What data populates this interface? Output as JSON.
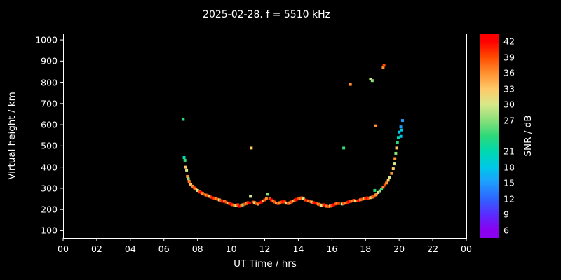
{
  "title": "2025-02-28. f = 5510 kHz",
  "axes": {
    "x": {
      "label": "UT Time / hrs",
      "tick_values": [
        0,
        2,
        4,
        6,
        8,
        10,
        12,
        14,
        16,
        18,
        20,
        22,
        24
      ],
      "tick_labels": [
        "00",
        "02",
        "04",
        "06",
        "08",
        "10",
        "12",
        "14",
        "16",
        "18",
        "20",
        "22",
        "00"
      ]
    },
    "y": {
      "label": "Virtual height / km",
      "tick_values": [
        100,
        200,
        300,
        400,
        500,
        600,
        700,
        800,
        900,
        1000
      ],
      "tick_labels": [
        "100",
        "200",
        "300",
        "400",
        "500",
        "600",
        "700",
        "800",
        "900",
        "1000"
      ]
    }
  },
  "colorbar": {
    "label": "SNR / dB",
    "tick_values": [
      42,
      39,
      36,
      33,
      30,
      27,
      21,
      18,
      15,
      12,
      9,
      6
    ],
    "stops": [
      {
        "value": 6,
        "color": "#8a00f0"
      },
      {
        "value": 9,
        "color": "#5a2bff"
      },
      {
        "value": 12,
        "color": "#2e64ff"
      },
      {
        "value": 15,
        "color": "#1e9bff"
      },
      {
        "value": 18,
        "color": "#00c8e8"
      },
      {
        "value": 21,
        "color": "#00d8b0"
      },
      {
        "value": 24,
        "color": "#2ed878"
      },
      {
        "value": 27,
        "color": "#8ae07a"
      },
      {
        "value": 30,
        "color": "#d8e88a"
      },
      {
        "value": 33,
        "color": "#ffc868"
      },
      {
        "value": 36,
        "color": "#ff9030"
      },
      {
        "value": 39,
        "color": "#ff4a00"
      },
      {
        "value": 42,
        "color": "#ff0000"
      }
    ]
  },
  "colors": {
    "background": "#000000",
    "axis": "#ffffff",
    "text": "#ffffff"
  },
  "chart_data": {
    "type": "scatter",
    "title": "2025-02-28. f = 5510 kHz",
    "xlabel": "UT Time / hrs",
    "ylabel": "Virtual height / km",
    "xlim": [
      0,
      24
    ],
    "ylim": [
      100,
      1000
    ],
    "snr_range": [
      6,
      42
    ],
    "points_format": [
      "ut_hours",
      "virtual_height_km",
      "snr_db"
    ],
    "points": [
      [
        7.15,
        625,
        24
      ],
      [
        7.2,
        445,
        21
      ],
      [
        7.25,
        432,
        24
      ],
      [
        7.3,
        400,
        33
      ],
      [
        7.35,
        386,
        30
      ],
      [
        7.4,
        356,
        36
      ],
      [
        7.45,
        345,
        27
      ],
      [
        7.5,
        333,
        36
      ],
      [
        7.55,
        325,
        39
      ],
      [
        7.6,
        318,
        33
      ],
      [
        7.7,
        310,
        36
      ],
      [
        7.8,
        302,
        39
      ],
      [
        7.9,
        296,
        36
      ],
      [
        8.0,
        290,
        30
      ],
      [
        8.1,
        285,
        39
      ],
      [
        8.2,
        280,
        42
      ],
      [
        8.3,
        276,
        36
      ],
      [
        8.4,
        272,
        39
      ],
      [
        8.5,
        268,
        36
      ],
      [
        8.6,
        265,
        39
      ],
      [
        8.7,
        262,
        33
      ],
      [
        8.8,
        258,
        39
      ],
      [
        8.9,
        255,
        42
      ],
      [
        9.0,
        252,
        39
      ],
      [
        9.1,
        250,
        36
      ],
      [
        9.2,
        248,
        39
      ],
      [
        9.3,
        245,
        30
      ],
      [
        9.4,
        242,
        39
      ],
      [
        9.5,
        238,
        42
      ],
      [
        9.6,
        240,
        36
      ],
      [
        9.7,
        235,
        39
      ],
      [
        9.8,
        230,
        33
      ],
      [
        9.9,
        228,
        39
      ],
      [
        10.0,
        225,
        42
      ],
      [
        10.1,
        222,
        39
      ],
      [
        10.2,
        220,
        36
      ],
      [
        10.3,
        218,
        30
      ],
      [
        10.4,
        222,
        39
      ],
      [
        10.5,
        215,
        42
      ],
      [
        10.6,
        218,
        39
      ],
      [
        10.7,
        222,
        27
      ],
      [
        10.8,
        225,
        39
      ],
      [
        10.9,
        228,
        36
      ],
      [
        11.0,
        232,
        39
      ],
      [
        11.1,
        230,
        42
      ],
      [
        11.15,
        262,
        30
      ],
      [
        11.3,
        235,
        39
      ],
      [
        11.4,
        232,
        30
      ],
      [
        11.5,
        228,
        39
      ],
      [
        11.6,
        225,
        36
      ],
      [
        11.7,
        230,
        39
      ],
      [
        11.8,
        235,
        42
      ],
      [
        11.9,
        240,
        33
      ],
      [
        12.0,
        245,
        39
      ],
      [
        12.1,
        250,
        36
      ],
      [
        12.15,
        272,
        27
      ],
      [
        12.3,
        252,
        39
      ],
      [
        12.4,
        245,
        42
      ],
      [
        12.5,
        240,
        36
      ],
      [
        12.6,
        235,
        39
      ],
      [
        12.7,
        230,
        33
      ],
      [
        12.8,
        228,
        39
      ],
      [
        12.9,
        232,
        36
      ],
      [
        13.0,
        235,
        39
      ],
      [
        13.1,
        238,
        42
      ],
      [
        13.2,
        235,
        39
      ],
      [
        13.3,
        230,
        30
      ],
      [
        13.4,
        228,
        39
      ],
      [
        13.5,
        232,
        36
      ],
      [
        13.6,
        236,
        39
      ],
      [
        13.7,
        240,
        33
      ],
      [
        13.8,
        244,
        39
      ],
      [
        13.9,
        248,
        42
      ],
      [
        14.0,
        250,
        39
      ],
      [
        14.1,
        252,
        36
      ],
      [
        14.2,
        255,
        39
      ],
      [
        14.3,
        250,
        30
      ],
      [
        14.4,
        245,
        39
      ],
      [
        14.5,
        242,
        42
      ],
      [
        14.6,
        240,
        36
      ],
      [
        14.7,
        238,
        39
      ],
      [
        14.8,
        235,
        33
      ],
      [
        14.9,
        232,
        39
      ],
      [
        15.0,
        230,
        42
      ],
      [
        15.1,
        228,
        39
      ],
      [
        15.2,
        225,
        36
      ],
      [
        15.3,
        222,
        39
      ],
      [
        15.4,
        220,
        30
      ],
      [
        15.5,
        222,
        39
      ],
      [
        15.6,
        218,
        42
      ],
      [
        15.7,
        215,
        36
      ],
      [
        15.8,
        214,
        39
      ],
      [
        15.9,
        216,
        33
      ],
      [
        16.0,
        218,
        39
      ],
      [
        16.1,
        222,
        42
      ],
      [
        16.2,
        226,
        39
      ],
      [
        16.3,
        230,
        36
      ],
      [
        16.4,
        228,
        39
      ],
      [
        16.6,
        226,
        30
      ],
      [
        16.7,
        228,
        39
      ],
      [
        16.8,
        230,
        36
      ],
      [
        16.9,
        233,
        39
      ],
      [
        17.0,
        236,
        42
      ],
      [
        17.1,
        238,
        39
      ],
      [
        17.2,
        240,
        36
      ],
      [
        17.3,
        243,
        39
      ],
      [
        17.4,
        240,
        30
      ],
      [
        17.5,
        240,
        39
      ],
      [
        17.6,
        243,
        42
      ],
      [
        17.7,
        246,
        36
      ],
      [
        17.8,
        248,
        39
      ],
      [
        17.9,
        250,
        33
      ],
      [
        18.0,
        252,
        39
      ],
      [
        18.1,
        255,
        42
      ],
      [
        18.2,
        252,
        39
      ],
      [
        18.3,
        256,
        30
      ],
      [
        18.4,
        258,
        36
      ],
      [
        18.5,
        262,
        39
      ],
      [
        18.55,
        290,
        24
      ],
      [
        18.6,
        268,
        36
      ],
      [
        18.65,
        272,
        36
      ],
      [
        18.75,
        280,
        30
      ],
      [
        18.85,
        288,
        27
      ],
      [
        18.95,
        296,
        24
      ],
      [
        19.05,
        305,
        36
      ],
      [
        19.15,
        315,
        39
      ],
      [
        19.25,
        325,
        36
      ],
      [
        19.35,
        338,
        33
      ],
      [
        19.45,
        352,
        30
      ],
      [
        19.55,
        370,
        36
      ],
      [
        19.65,
        392,
        33
      ],
      [
        19.7,
        415,
        30
      ],
      [
        19.75,
        440,
        36
      ],
      [
        19.8,
        465,
        27
      ],
      [
        19.85,
        490,
        33
      ],
      [
        19.9,
        515,
        24
      ],
      [
        19.95,
        540,
        21
      ],
      [
        20.0,
        565,
        18
      ],
      [
        20.1,
        590,
        15
      ],
      [
        20.2,
        620,
        15
      ],
      [
        11.2,
        490,
        33
      ],
      [
        16.7,
        490,
        24
      ],
      [
        17.1,
        790,
        36
      ],
      [
        18.3,
        815,
        30
      ],
      [
        18.4,
        808,
        27
      ],
      [
        18.6,
        595,
        36
      ],
      [
        19.05,
        868,
        36
      ],
      [
        19.1,
        880,
        39
      ],
      [
        20.1,
        545,
        18
      ],
      [
        20.15,
        575,
        18
      ]
    ]
  }
}
